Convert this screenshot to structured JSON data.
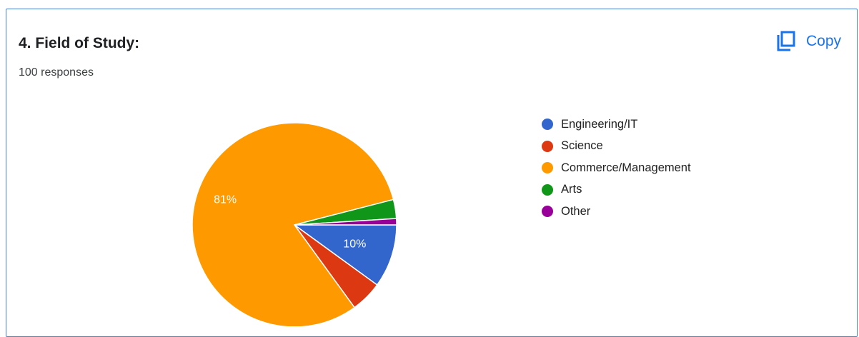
{
  "card": {
    "title": "4. Field of Study:",
    "subtitle": "100 responses",
    "copy_label": "Copy",
    "copy_icon": "copy-icon",
    "accent": "#1a73e8"
  },
  "chart_data": {
    "type": "pie",
    "categories": [
      "Engineering/IT",
      "Science",
      "Commerce/Management",
      "Arts",
      "Other"
    ],
    "values": [
      10,
      5,
      81,
      3,
      1
    ],
    "colors": [
      "#3366cc",
      "#dc3912",
      "#ff9900",
      "#109618",
      "#990099"
    ],
    "data_labels": [
      "10%",
      "",
      "81%",
      "",
      ""
    ],
    "legend_position": "right"
  }
}
